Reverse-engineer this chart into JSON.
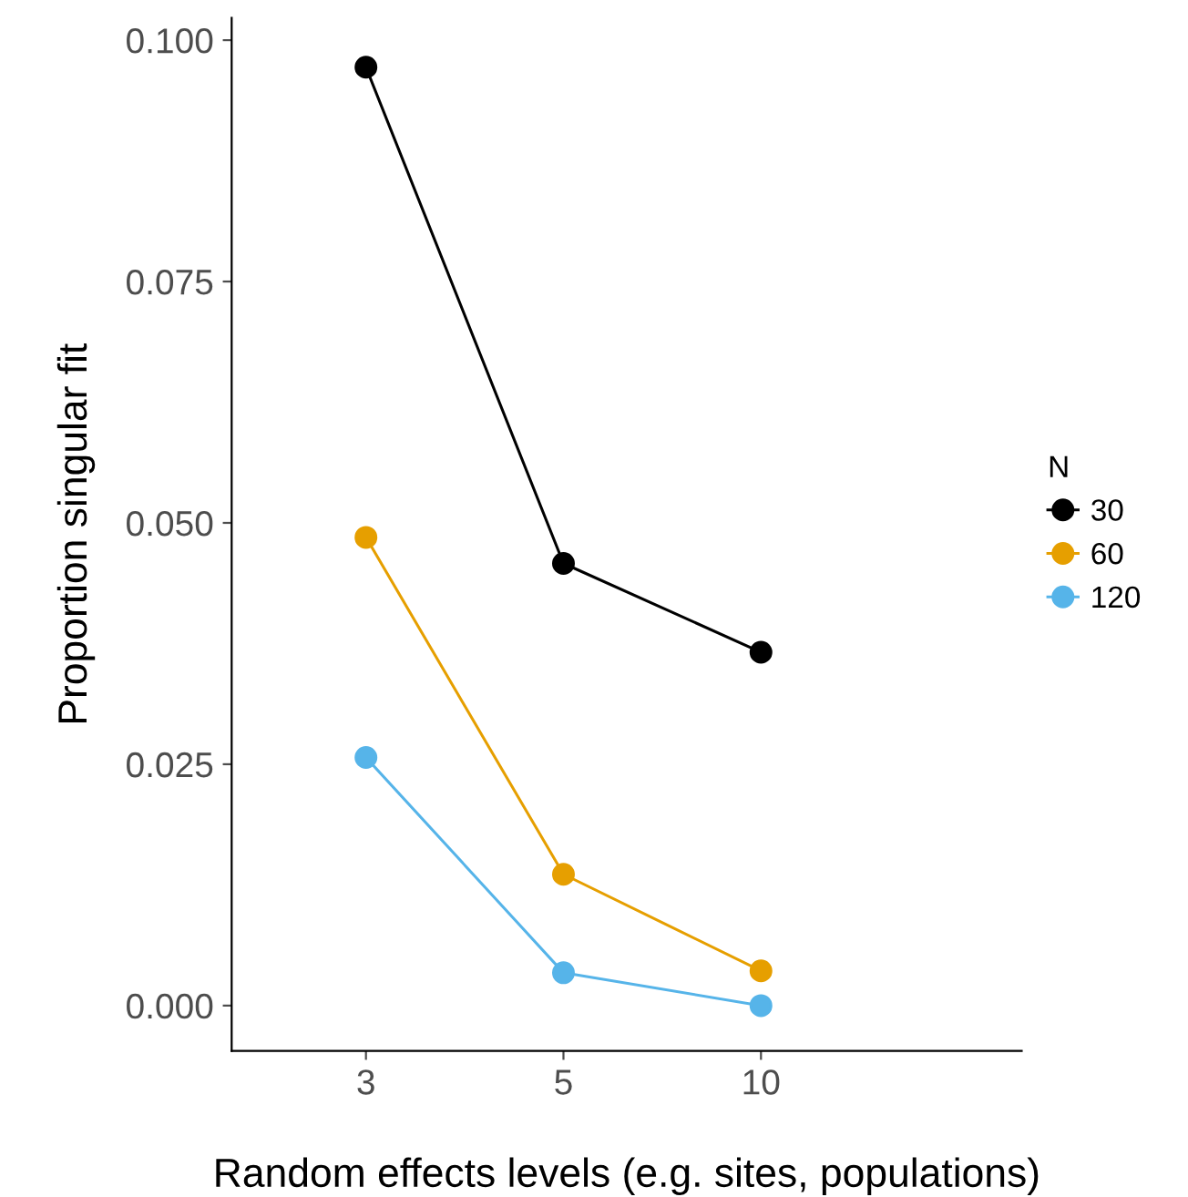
{
  "chart_data": {
    "type": "line",
    "xlabel": "Random effects levels (e.g. sites, populations)",
    "ylabel": "Proportion singular fit",
    "legend_title": "N",
    "categories": [
      "3",
      "5",
      "10"
    ],
    "series": [
      {
        "name": "30",
        "color": "#000000",
        "values": [
          0.0972,
          0.0458,
          0.0366
        ]
      },
      {
        "name": "60",
        "color": "#e69f00",
        "values": [
          0.0485,
          0.0136,
          0.0036
        ]
      },
      {
        "name": "120",
        "color": "#56b4e9",
        "values": [
          0.0257,
          0.0034,
          0.0
        ]
      }
    ],
    "ylim": [
      -0.0047,
      0.1023
    ],
    "yticks": [
      {
        "value": 0,
        "label": "0.000"
      },
      {
        "value": 0.025,
        "label": "0.025"
      },
      {
        "value": 0.05,
        "label": "0.050"
      },
      {
        "value": 0.075,
        "label": "0.075"
      },
      {
        "value": 0.1,
        "label": "0.100"
      }
    ],
    "grid": false,
    "legend": "right",
    "marker": "circle",
    "line_style": "solid"
  }
}
